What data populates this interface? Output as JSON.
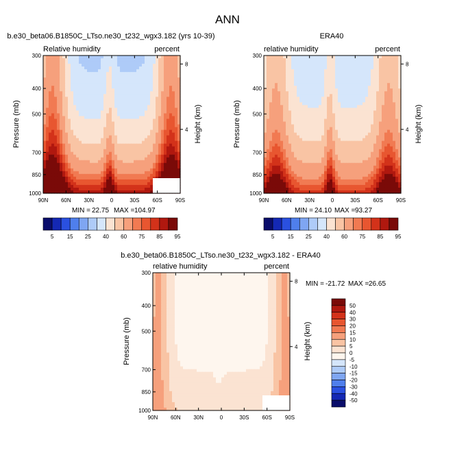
{
  "page": {
    "title": "ANN"
  },
  "colors": {
    "abs_levels": [
      "#0a0d6b",
      "#1428b4",
      "#2a50e0",
      "#4f7fec",
      "#7fa6f2",
      "#aecbf8",
      "#d5e6fb",
      "#fbe3d2",
      "#f9c4a4",
      "#f6a07c",
      "#f17a52",
      "#e85630",
      "#d3321a",
      "#b0180f",
      "#7a0a08"
    ],
    "diff_levels": [
      "#7a0a08",
      "#b0180f",
      "#d3321a",
      "#e85630",
      "#f17a52",
      "#f6a07c",
      "#f9c4a4",
      "#fbe3d2",
      "#fef6ee",
      "#d5e6fb",
      "#aecbf8",
      "#7fa6f2",
      "#4f7fec",
      "#2a50e0",
      "#1428b4",
      "#0a0d6b"
    ]
  },
  "chart_data": [
    {
      "type": "heatmap",
      "id": "model",
      "title": "b.e30_beta06.B1850C_LTso.ne30_t232_wgx3.182 (yrs 10-39)",
      "left_label": "Relative humidity",
      "right_label": "percent",
      "ylabel": "Pressure (mb)",
      "y2label": "Height (km)",
      "x_ticks": [
        "90N",
        "60N",
        "30N",
        "0",
        "30S",
        "60S",
        "90S"
      ],
      "y_ticks": [
        "300",
        "400",
        "500",
        "700",
        "850",
        "1000"
      ],
      "y2_ticks": [
        "8",
        "4"
      ],
      "stats": {
        "min_label": "MIN =",
        "min": "22.75",
        "max_label": "MAX =",
        "max": "104.97"
      },
      "ylim": [
        1000,
        300
      ],
      "xlim": [
        90,
        -90
      ]
    },
    {
      "type": "heatmap",
      "id": "obs",
      "title": "ERA40",
      "left_label": "relative humidity",
      "right_label": "percent",
      "ylabel": "Pressure (mb)",
      "y2label": "Height (km)",
      "x_ticks": [
        "90N",
        "60N",
        "30N",
        "0",
        "30S",
        "60S",
        "90S"
      ],
      "y_ticks": [
        "300",
        "400",
        "500",
        "700",
        "850",
        "1000"
      ],
      "y2_ticks": [
        "8",
        "4"
      ],
      "stats": {
        "min_label": "MIN =",
        "min": "24.10",
        "max_label": "MAX =",
        "max": "93.27"
      },
      "ylim": [
        1000,
        300
      ],
      "xlim": [
        90,
        -90
      ]
    },
    {
      "type": "heatmap",
      "id": "diff",
      "title": "b.e30_beta06.B1850C_LTso.ne30_t232_wgx3.182 - ERA40",
      "left_label": "relative humidity",
      "right_label": "percent",
      "ylabel": "Pressure (mb)",
      "y2label": "Height (km)",
      "x_ticks": [
        "90N",
        "60N",
        "30N",
        "0",
        "30S",
        "60S",
        "90S"
      ],
      "y_ticks": [
        "300",
        "400",
        "500",
        "700",
        "850",
        "1000"
      ],
      "y2_ticks": [
        "8",
        "4"
      ],
      "stats": {
        "min_label": "MIN =",
        "min": "-21.72",
        "max_label": "MAX =",
        "max": "26.65"
      },
      "ylim": [
        1000,
        300
      ],
      "xlim": [
        90,
        -90
      ]
    }
  ],
  "colorbars": {
    "abs": {
      "labels": [
        "5",
        "15",
        "25",
        "40",
        "60",
        "75",
        "85",
        "95"
      ]
    },
    "diff": {
      "labels": [
        "50",
        "40",
        "30",
        "20",
        "15",
        "10",
        "5",
        "0",
        "-5",
        "-10",
        "-15",
        "-20",
        "-30",
        "-40",
        "-50"
      ]
    }
  }
}
